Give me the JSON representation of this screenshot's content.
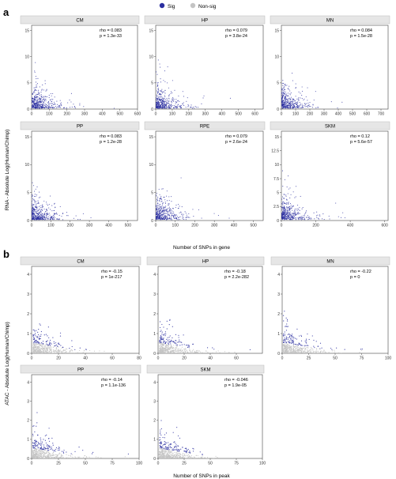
{
  "legend": {
    "items": [
      {
        "label": "Sig",
        "color": "#2b2fa0"
      },
      {
        "label": "Non-sig",
        "color": "#c4c4c4"
      }
    ]
  },
  "colors": {
    "sig": "#2b2fa0",
    "nonsig": "#c4c4c4",
    "strip": "#e6e6e6"
  },
  "chart_data": [
    {
      "type": "scatter",
      "panel_label": "a",
      "xlabel": "Number of SNPs in gene",
      "ylabel": "RNA - Absolute Log(Human/Chimp)",
      "facets": [
        {
          "name": "CM",
          "rho": "rho = 0.083",
          "p": "p = 1.3e-33",
          "xlim": [
            0,
            600
          ],
          "ylim": [
            0,
            16
          ],
          "xticks": [
            0,
            100,
            200,
            300,
            400,
            500,
            600
          ],
          "yticks": [
            0,
            5,
            10,
            15
          ]
        },
        {
          "name": "HP",
          "rho": "rho = 0.079",
          "p": "p = 3.8e-24",
          "xlim": [
            0,
            650
          ],
          "ylim": [
            0,
            16
          ],
          "xticks": [
            0,
            100,
            200,
            300,
            400,
            500,
            600
          ],
          "yticks": [
            0,
            5,
            10,
            15
          ]
        },
        {
          "name": "MN",
          "rho": "rho = 0.084",
          "p": "p = 1.5e-28",
          "xlim": [
            0,
            750
          ],
          "ylim": [
            0,
            16
          ],
          "xticks": [
            0,
            100,
            200,
            300,
            400,
            500,
            600,
            700
          ],
          "yticks": [
            0,
            5,
            10,
            15
          ]
        },
        {
          "name": "PP",
          "rho": "rho = 0.083",
          "p": "p = 1.2e-28",
          "xlim": [
            0,
            550
          ],
          "ylim": [
            0,
            16
          ],
          "xticks": [
            0,
            100,
            200,
            300,
            400,
            500
          ],
          "yticks": [
            0,
            5,
            10,
            15
          ]
        },
        {
          "name": "RPE",
          "rho": "rho = 0.079",
          "p": "p = 2.6e-24",
          "xlim": [
            0,
            550
          ],
          "ylim": [
            0,
            16
          ],
          "xticks": [
            0,
            100,
            200,
            300,
            400,
            500
          ],
          "yticks": [
            0,
            5,
            10,
            15
          ]
        },
        {
          "name": "SKM",
          "rho": "rho = 0.12",
          "p": "p = 5.6e-57",
          "xlim": [
            0,
            620
          ],
          "ylim": [
            0,
            16
          ],
          "xticks": [
            0,
            200,
            400,
            600
          ],
          "yticks": [
            0,
            2.5,
            5,
            7.5,
            10,
            12.5,
            15
          ]
        }
      ]
    },
    {
      "type": "scatter",
      "panel_label": "b",
      "xlabel": "Number of SNPs in peak",
      "ylabel": "ATAC - Absolute Log(Human/Chimp)",
      "facets": [
        {
          "name": "CM",
          "rho": "rho = -0.15",
          "p": "p = 1e-217",
          "xlim": [
            0,
            80
          ],
          "ylim": [
            0,
            4.4
          ],
          "xticks": [
            0,
            20,
            40,
            60,
            80
          ],
          "yticks": [
            0,
            1,
            2,
            3,
            4
          ]
        },
        {
          "name": "HP",
          "rho": "rho = -0.18",
          "p": "p = 2.2e-282",
          "xlim": [
            0,
            80
          ],
          "ylim": [
            0,
            4.4
          ],
          "xticks": [
            0,
            20,
            40,
            60
          ],
          "yticks": [
            0,
            1,
            2,
            3,
            4
          ]
        },
        {
          "name": "MN",
          "rho": "rho = -0.22",
          "p": "p = 0",
          "xlim": [
            0,
            100
          ],
          "ylim": [
            0,
            4.4
          ],
          "xticks": [
            0,
            25,
            50,
            75,
            100
          ],
          "yticks": [
            0,
            1,
            2,
            3,
            4
          ]
        },
        {
          "name": "PP",
          "rho": "rho = -0.14",
          "p": "p = 1.1e-136",
          "xlim": [
            0,
            100
          ],
          "ylim": [
            0,
            4.4
          ],
          "xticks": [
            0,
            25,
            50,
            75,
            100
          ],
          "yticks": [
            0,
            1,
            2,
            3,
            4
          ]
        },
        {
          "name": "SKM",
          "rho": "rho = -0.046",
          "p": "p = 1.9e-05",
          "xlim": [
            0,
            100
          ],
          "ylim": [
            0,
            4.4
          ],
          "xticks": [
            0,
            25,
            50,
            75,
            100
          ],
          "yticks": [
            0,
            1,
            2,
            3,
            4
          ]
        }
      ]
    }
  ]
}
